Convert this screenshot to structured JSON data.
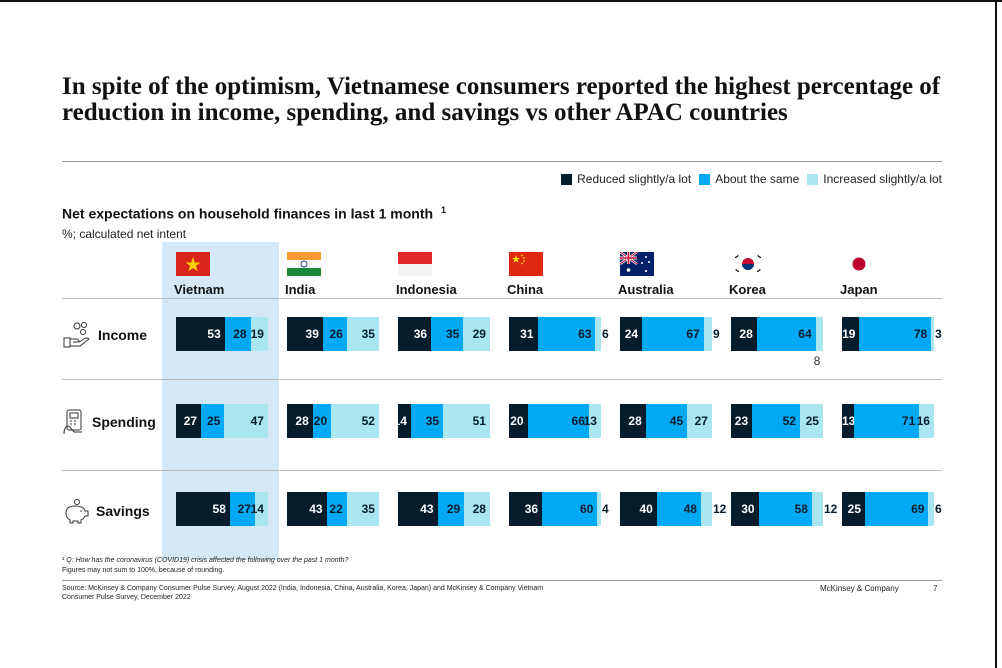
{
  "title": "In spite of the optimism, Vietnamese consumers reported the highest percentage of reduction in income, spending, and savings vs other APAC countries",
  "legend": [
    {
      "label": "Reduced slightly/a lot",
      "color": "#051c2c"
    },
    {
      "label": "About the same",
      "color": "#00a9f4"
    },
    {
      "label": "Increased slightly/a lot",
      "color": "#aae6f0"
    }
  ],
  "subtitle": "Net expectations on household finances in last 1 month",
  "subtitle_sup": "1",
  "unit": "%; calculated net intent",
  "footnote": "¹ Q: How has the coronavirus (COVID19) crisis affected the following over the past 1 month?",
  "footnote2": "Figures may not sum to 100%, because of rounding.",
  "source_line1": "Source: McKinsey & Company Consumer Pulse Survey, August 2022 (India, Indonesia, China, Australia, Korea, Japan) and McKinsey & Company Vietnam",
  "source_line2": "Consumer Pulse Survey, December 2022",
  "brand": "McKinsey & Company",
  "page": "7",
  "chart_data": {
    "type": "bar",
    "stacked": true,
    "orientation": "horizontal",
    "categories": [
      "Vietnam",
      "India",
      "Indonesia",
      "China",
      "Australia",
      "Korea",
      "Japan"
    ],
    "rows": [
      "Income",
      "Spending",
      "Savings"
    ],
    "series": [
      {
        "name": "Reduced slightly/a lot",
        "values": [
          [
            53,
            39,
            36,
            31,
            24,
            28,
            19
          ],
          [
            27,
            28,
            14,
            20,
            28,
            23,
            13
          ],
          [
            58,
            43,
            43,
            36,
            40,
            30,
            25
          ]
        ]
      },
      {
        "name": "About the same",
        "values": [
          [
            28,
            26,
            35,
            63,
            67,
            64,
            78
          ],
          [
            25,
            20,
            35,
            66,
            45,
            52,
            71
          ],
          [
            27,
            22,
            29,
            60,
            48,
            58,
            69
          ]
        ]
      },
      {
        "name": "Increased slightly/a lot",
        "values": [
          [
            19,
            35,
            29,
            6,
            9,
            8,
            3
          ],
          [
            47,
            52,
            51,
            13,
            27,
            25,
            16
          ],
          [
            14,
            35,
            28,
            4,
            12,
            12,
            6
          ]
        ]
      }
    ],
    "highlight": "Vietnam"
  }
}
